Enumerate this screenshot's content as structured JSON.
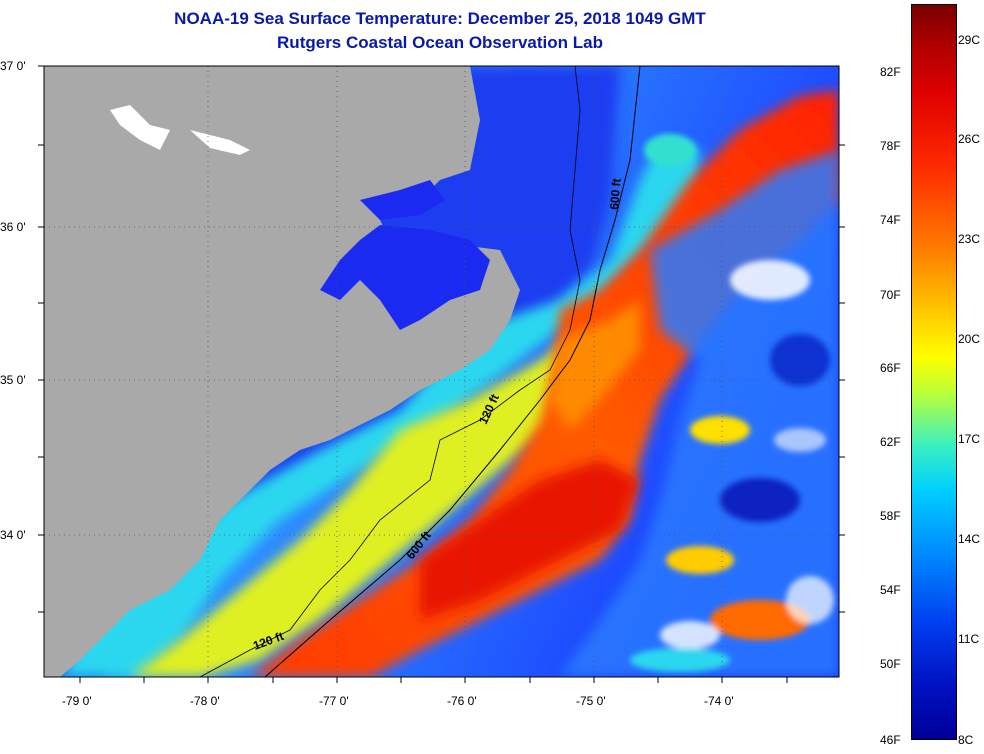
{
  "title_line1": "NOAA-19 Sea Surface Temperature:  December 25, 2018 1049 GMT",
  "title_line2": "Rutgers Coastal Ocean Observation Lab",
  "lat_labels": [
    "37 0'",
    "36 0'",
    "35 0'",
    "34 0'"
  ],
  "lon_labels": [
    "-79 0'",
    "-78 0'",
    "-77 0'",
    "-76 0'",
    "-75 0'",
    "-74 0'"
  ],
  "contour_labels": [
    "600 ft",
    "120 ft",
    "600 ft",
    "120 ft"
  ],
  "colorbar": {
    "fahrenheit_labels": [
      "82F",
      "78F",
      "74F",
      "70F",
      "66F",
      "62F",
      "58F",
      "54F",
      "50F",
      "46F"
    ],
    "celsius_labels": [
      "29C",
      "26C",
      "23C",
      "20C",
      "17C",
      "14C",
      "11C",
      "8C"
    ]
  },
  "colors": {
    "land": "#a9a9a9",
    "title": "#0a1aa8"
  }
}
